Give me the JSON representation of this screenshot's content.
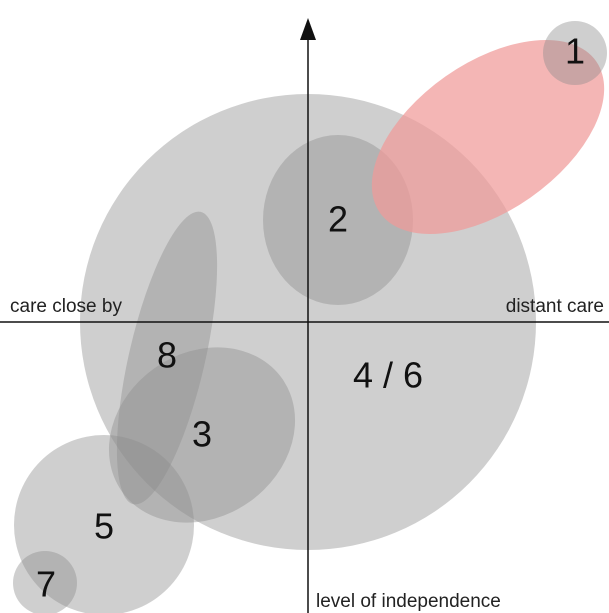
{
  "axes": {
    "left": "care close by",
    "right": "distant care",
    "bottom": "level of independence"
  },
  "nodes": [
    {
      "label": "1"
    },
    {
      "label": "2"
    },
    {
      "label": "3"
    },
    {
      "label": "4 / 6"
    },
    {
      "label": "5"
    },
    {
      "label": "7"
    },
    {
      "label": "8"
    }
  ]
}
